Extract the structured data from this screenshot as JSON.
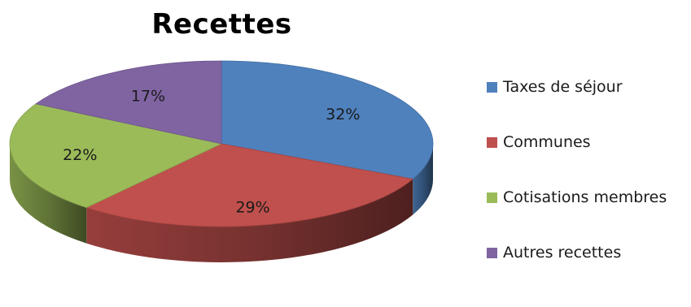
{
  "chart_data": {
    "type": "pie",
    "title": "Recettes",
    "categories": [
      "Taxes de séjour",
      "Communes",
      "Cotisations membres",
      "Autres recettes"
    ],
    "values": [
      32,
      29,
      22,
      17
    ],
    "labels": [
      "32%",
      "29%",
      "22%",
      "17%"
    ],
    "colors": [
      "#4f81bd",
      "#c0504d",
      "#9bbb59",
      "#8064a2"
    ],
    "legend_position": "right",
    "style": "3d"
  }
}
